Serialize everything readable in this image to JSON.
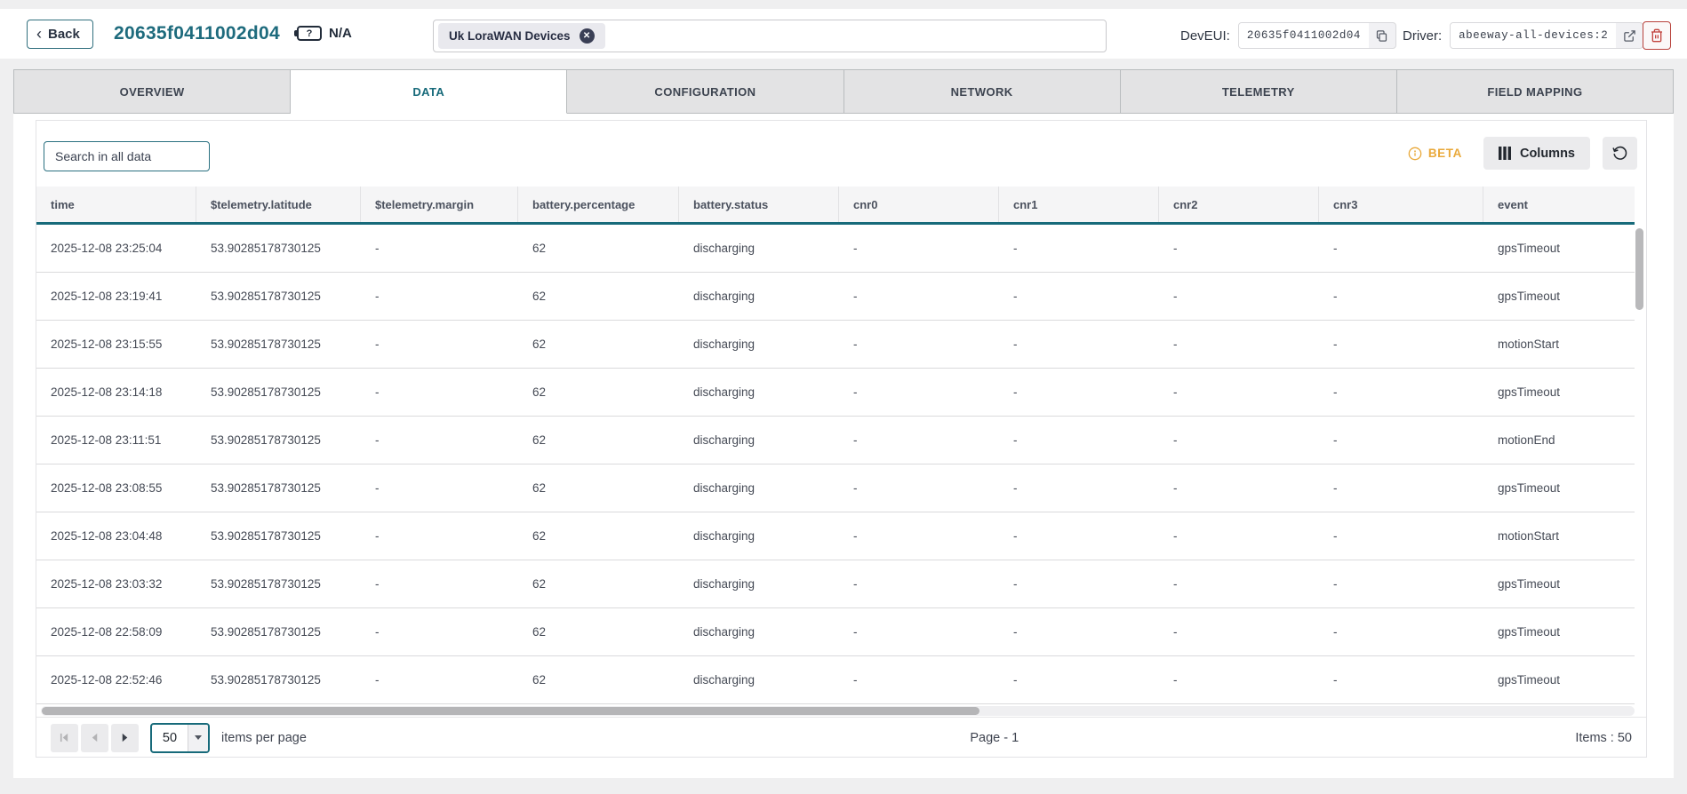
{
  "colors": {
    "accent_teal": "#176A7A",
    "danger_red": "#C2453F",
    "beta_amber": "#E9A93B"
  },
  "header": {
    "back_button": "Back",
    "device_title": "20635f0411002d04",
    "battery_status": "N/A",
    "tag_chip": "Uk LoraWAN Devices",
    "deveui_label": "DevEUI:",
    "deveui_value": "20635f0411002d04",
    "driver_label": "Driver:",
    "driver_value": "abeeway-all-devices:2"
  },
  "tabs": [
    {
      "label": "OVERVIEW",
      "active": false
    },
    {
      "label": "DATA",
      "active": true
    },
    {
      "label": "CONFIGURATION",
      "active": false
    },
    {
      "label": "NETWORK",
      "active": false
    },
    {
      "label": "TELEMETRY",
      "active": false
    },
    {
      "label": "FIELD MAPPING",
      "active": false
    }
  ],
  "toolbar": {
    "search_placeholder": "Search in all data",
    "beta_label": "BETA",
    "columns_button": "Columns"
  },
  "table": {
    "columns": [
      "time",
      "$telemetry.latitude",
      "$telemetry.margin",
      "battery.percentage",
      "battery.status",
      "cnr0",
      "cnr1",
      "cnr2",
      "cnr3",
      "event"
    ],
    "rows": [
      [
        "2025-12-08 23:25:04",
        "53.90285178730125",
        "-",
        "62",
        "discharging",
        "-",
        "-",
        "-",
        "-",
        "gpsTimeout"
      ],
      [
        "2025-12-08 23:19:41",
        "53.90285178730125",
        "-",
        "62",
        "discharging",
        "-",
        "-",
        "-",
        "-",
        "gpsTimeout"
      ],
      [
        "2025-12-08 23:15:55",
        "53.90285178730125",
        "-",
        "62",
        "discharging",
        "-",
        "-",
        "-",
        "-",
        "motionStart"
      ],
      [
        "2025-12-08 23:14:18",
        "53.90285178730125",
        "-",
        "62",
        "discharging",
        "-",
        "-",
        "-",
        "-",
        "gpsTimeout"
      ],
      [
        "2025-12-08 23:11:51",
        "53.90285178730125",
        "-",
        "62",
        "discharging",
        "-",
        "-",
        "-",
        "-",
        "motionEnd"
      ],
      [
        "2025-12-08 23:08:55",
        "53.90285178730125",
        "-",
        "62",
        "discharging",
        "-",
        "-",
        "-",
        "-",
        "gpsTimeout"
      ],
      [
        "2025-12-08 23:04:48",
        "53.90285178730125",
        "-",
        "62",
        "discharging",
        "-",
        "-",
        "-",
        "-",
        "motionStart"
      ],
      [
        "2025-12-08 23:03:32",
        "53.90285178730125",
        "-",
        "62",
        "discharging",
        "-",
        "-",
        "-",
        "-",
        "gpsTimeout"
      ],
      [
        "2025-12-08 22:58:09",
        "53.90285178730125",
        "-",
        "62",
        "discharging",
        "-",
        "-",
        "-",
        "-",
        "gpsTimeout"
      ],
      [
        "2025-12-08 22:52:46",
        "53.90285178730125",
        "-",
        "62",
        "discharging",
        "-",
        "-",
        "-",
        "-",
        "gpsTimeout"
      ]
    ]
  },
  "pagination": {
    "page_size": "50",
    "items_per_page_label": "items per page",
    "page_indicator": "Page - 1",
    "items_total": "Items : 50"
  }
}
